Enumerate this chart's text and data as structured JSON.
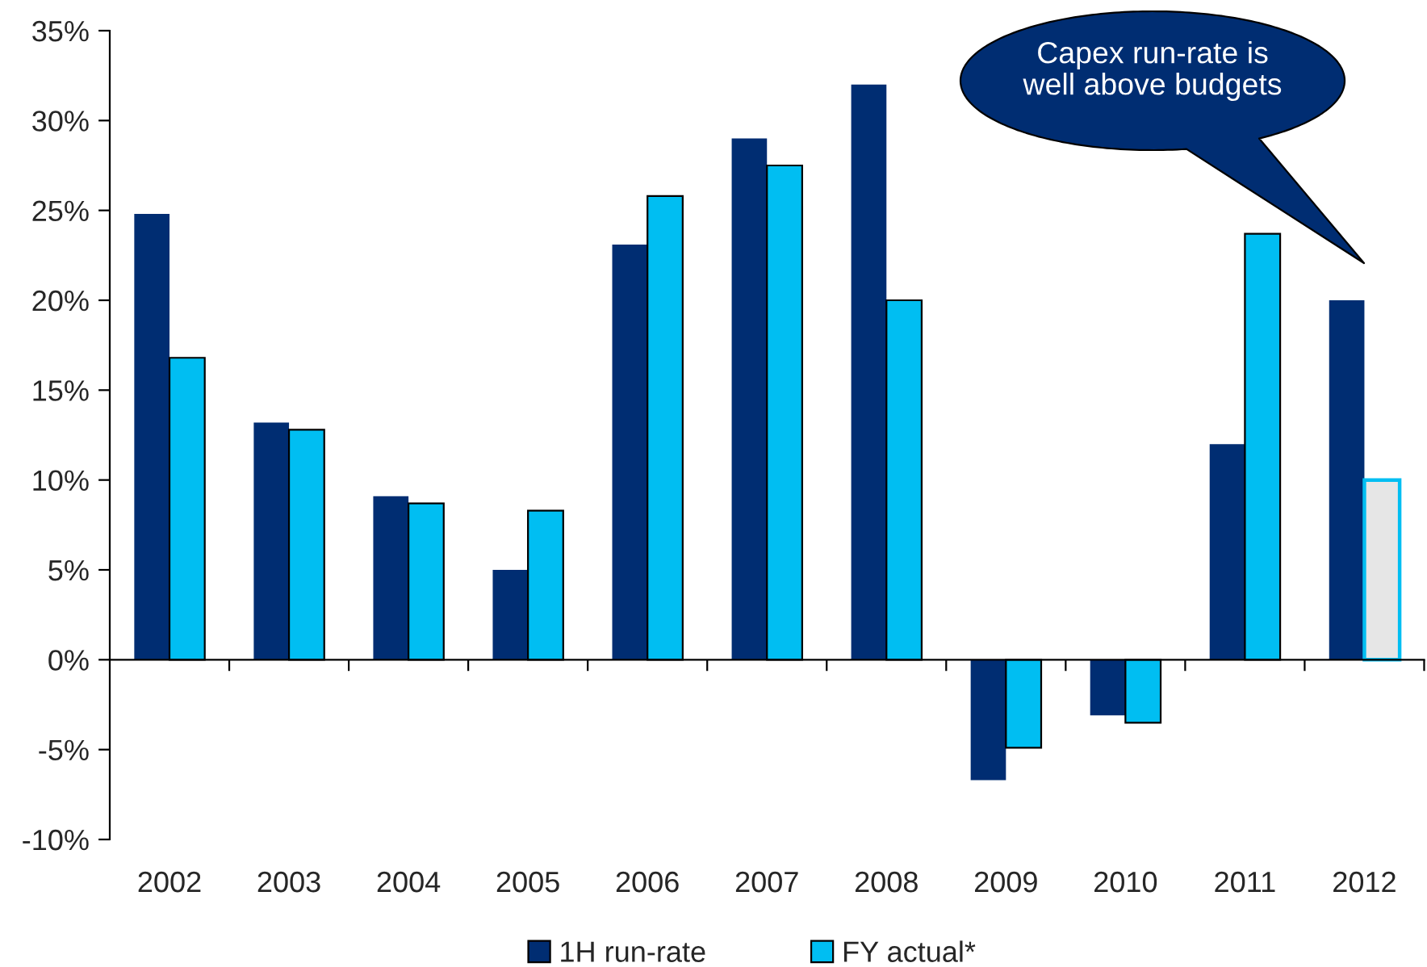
{
  "chart_data": {
    "type": "bar",
    "categories": [
      "2002",
      "2003",
      "2004",
      "2005",
      "2006",
      "2007",
      "2008",
      "2009",
      "2010",
      "2011",
      "2012"
    ],
    "series": [
      {
        "name": "1H run-rate",
        "color": "#002d72",
        "values": [
          24.8,
          13.2,
          9.1,
          5.0,
          23.1,
          29.0,
          32.0,
          -6.7,
          -3.1,
          12.0,
          20.0
        ]
      },
      {
        "name": "FY actual*",
        "color": "#00bef2",
        "colors": [
          "#00bef2",
          "#00bef2",
          "#00bef2",
          "#00bef2",
          "#00bef2",
          "#00bef2",
          "#00bef2",
          "#00bef2",
          "#00bef2",
          "#00bef2",
          "#e6e6e6"
        ],
        "values": [
          16.8,
          12.8,
          8.7,
          8.3,
          25.8,
          27.5,
          20.0,
          -4.9,
          -3.5,
          23.7,
          10.0
        ]
      }
    ],
    "ylim": [
      -10,
      35
    ],
    "yticks": [
      {
        "value": -10,
        "label": "-10%"
      },
      {
        "value": -5,
        "label": "-5%"
      },
      {
        "value": 0,
        "label": "0%"
      },
      {
        "value": 5,
        "label": "5%"
      },
      {
        "value": 10,
        "label": "10%"
      },
      {
        "value": 15,
        "label": "15%"
      },
      {
        "value": 20,
        "label": "20%"
      },
      {
        "value": 25,
        "label": "25%"
      },
      {
        "value": 30,
        "label": "30%"
      },
      {
        "value": 35,
        "label": "35%"
      }
    ],
    "legend": "bottom",
    "annotations": [
      "Capex run-rate is\nwell above budgets"
    ]
  }
}
